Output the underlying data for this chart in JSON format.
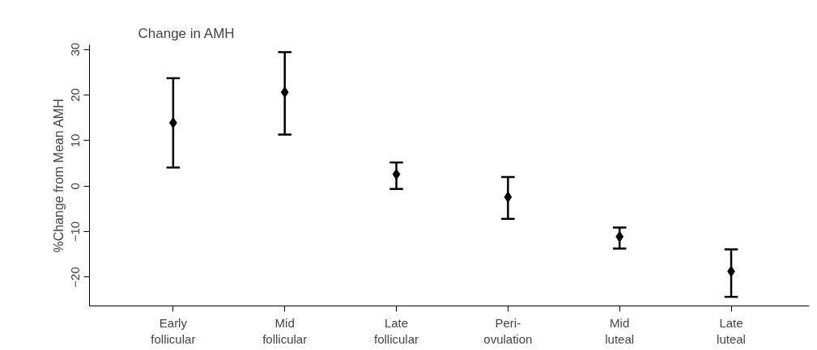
{
  "chart_data": {
    "type": "scatter",
    "title": "Change in AMH",
    "ylabel": "%Change from Mean AMH",
    "categories": [
      "Early\nfollicular",
      "Mid\nfollicular",
      "Late\nfollicular",
      "Peri-\novulation",
      "Mid\nluteal",
      "Late\nluteal"
    ],
    "values": [
      13.9,
      20.6,
      2.6,
      -2.4,
      -11.1,
      -18.7
    ],
    "errors": [
      [
        4.1,
        23.7
      ],
      [
        11.3,
        29.4
      ],
      [
        -0.6,
        5.2
      ],
      [
        -7.2,
        2.0
      ],
      [
        -13.7,
        -9.1
      ],
      [
        -24.3,
        -13.9
      ]
    ],
    "color": "#000000",
    "marker": "diamond",
    "ylim": [
      -26.3,
      31
    ],
    "yticks": [
      -20,
      -10,
      0,
      10,
      20,
      30
    ],
    "grid": false
  }
}
